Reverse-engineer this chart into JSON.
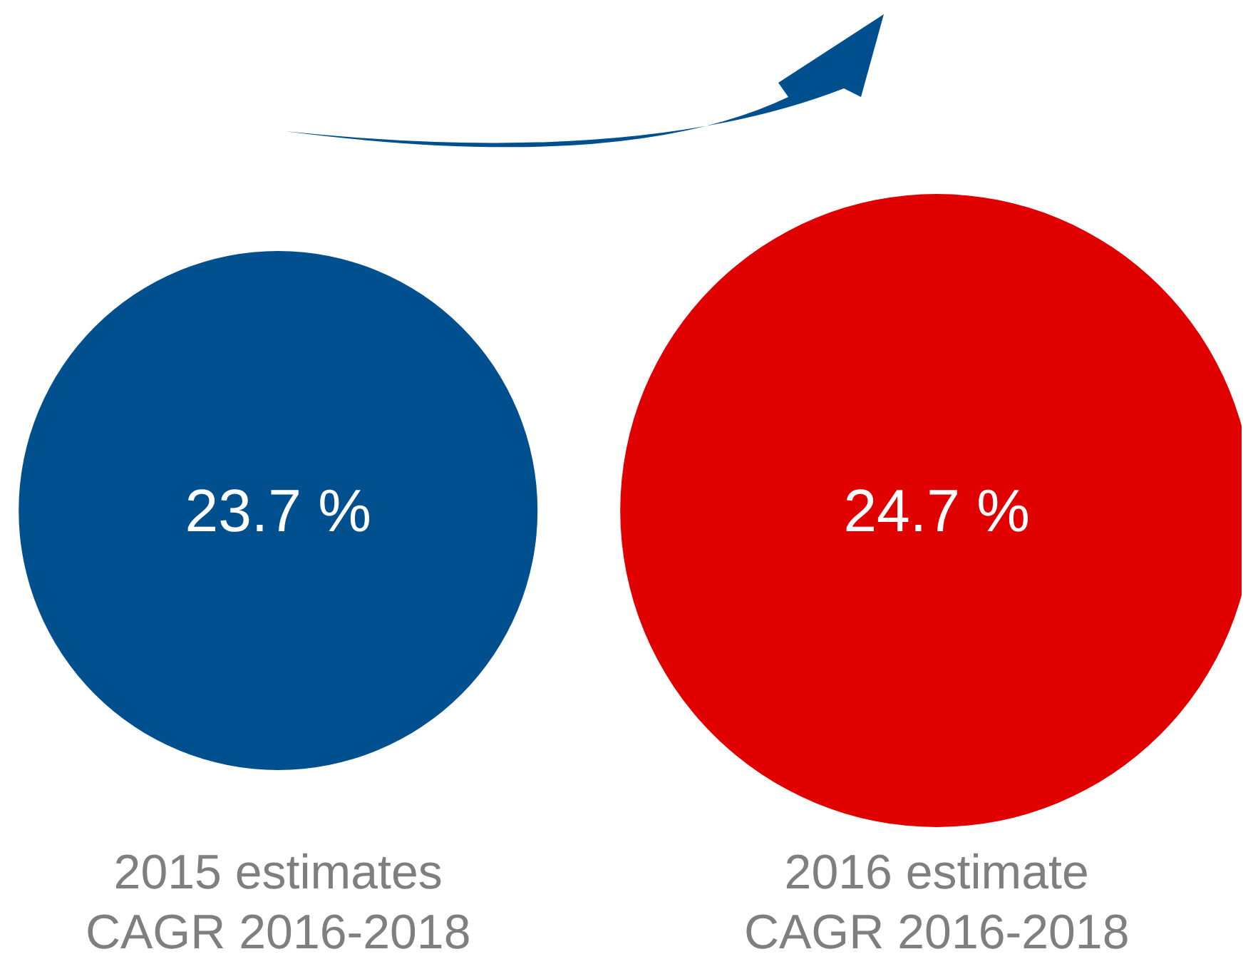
{
  "chart_data": {
    "type": "other",
    "categories": [
      "2015 estimates\nCAGR 2016-2018",
      "2016 estimate\nCAGR 2016-2018"
    ],
    "values": [
      23.7,
      24.7
    ],
    "value_labels": [
      "23.7 %",
      "24.7 %"
    ],
    "colors": [
      "#004f8f",
      "#e10000"
    ]
  }
}
